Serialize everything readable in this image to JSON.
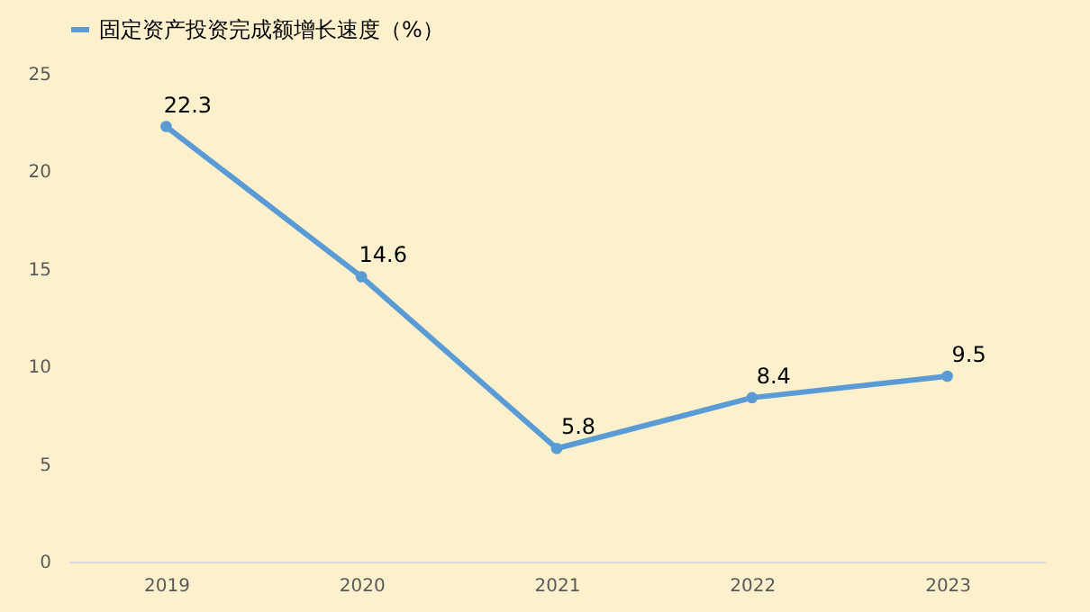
{
  "chart_data": {
    "type": "line",
    "categories": [
      "2019",
      "2020",
      "2021",
      "2022",
      "2023"
    ],
    "series": [
      {
        "name": "固定资产投资完成额增长速度（%）",
        "color": "#5b9bd5",
        "values": [
          22.3,
          14.6,
          5.8,
          8.4,
          9.5
        ]
      }
    ],
    "ylim": [
      0,
      25
    ],
    "yticks": [
      0,
      5,
      10,
      15,
      20,
      25
    ],
    "grid": false,
    "legend": "top",
    "marker": "circle",
    "line_style": "solid",
    "data_labels": true
  }
}
